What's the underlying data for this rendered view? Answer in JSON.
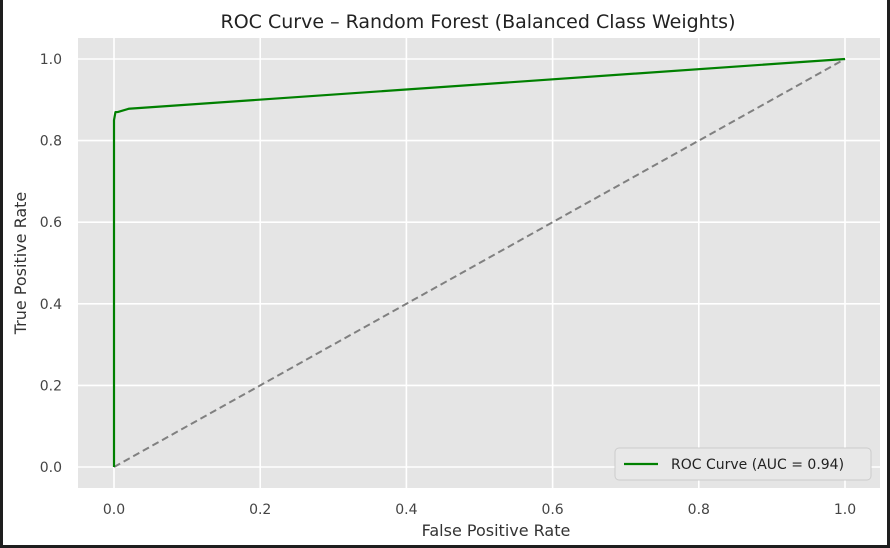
{
  "chart_data": {
    "type": "line",
    "title": "ROC Curve – Random Forest (Balanced Class Weights)",
    "xlabel": "False Positive Rate",
    "ylabel": "True Positive Rate",
    "xlim": [
      0,
      1
    ],
    "ylim": [
      0,
      1
    ],
    "xticks": [
      0.0,
      0.2,
      0.4,
      0.6,
      0.8,
      1.0
    ],
    "yticks": [
      0.0,
      0.2,
      0.4,
      0.6,
      0.8,
      1.0
    ],
    "xtick_labels": [
      "0.0",
      "0.2",
      "0.4",
      "0.6",
      "0.8",
      "1.0"
    ],
    "ytick_labels": [
      "0.0",
      "0.2",
      "0.4",
      "0.6",
      "0.8",
      "1.0"
    ],
    "grid": true,
    "legend": {
      "placement": "lower-right"
    },
    "series": [
      {
        "name": "ROC Curve (AUC = 0.94)",
        "color": "#008000",
        "style": "solid",
        "x": [
          0.0,
          0.0,
          0.0,
          0.002,
          0.005,
          0.02,
          1.0
        ],
        "y": [
          0.0,
          0.6,
          0.85,
          0.87,
          0.87,
          0.878,
          1.0
        ]
      },
      {
        "color": "#808080",
        "style": "dashed",
        "x": [
          0.0,
          1.0
        ],
        "y": [
          0.0,
          1.0
        ]
      }
    ],
    "background_color": "#e5e5e5",
    "grid_color": "#ffffff"
  }
}
